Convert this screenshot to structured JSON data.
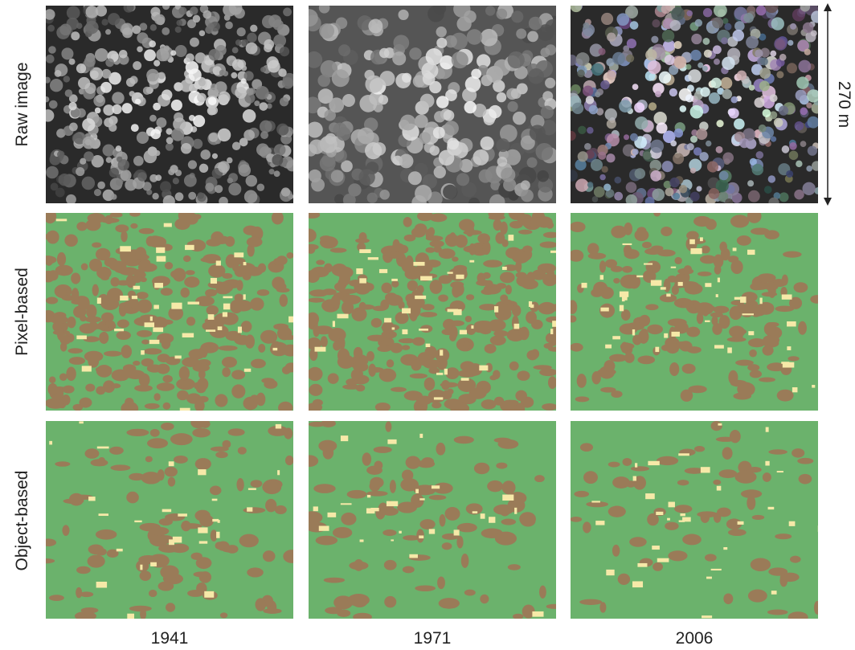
{
  "row_labels": [
    "Raw image",
    "Pixel-based",
    "Object-based"
  ],
  "column_labels": [
    "1941",
    "1971",
    "2006"
  ],
  "scale_label": "270 m"
}
